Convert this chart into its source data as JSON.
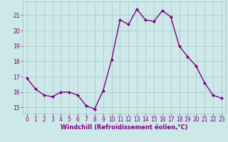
{
  "x": [
    0,
    1,
    2,
    3,
    4,
    5,
    6,
    7,
    8,
    9,
    10,
    11,
    12,
    13,
    14,
    15,
    16,
    17,
    18,
    19,
    20,
    21,
    22,
    23
  ],
  "y": [
    16.9,
    16.2,
    15.8,
    15.7,
    16.0,
    16.0,
    15.8,
    15.1,
    14.9,
    16.1,
    18.1,
    20.7,
    20.4,
    21.4,
    20.7,
    20.6,
    21.3,
    20.9,
    19.0,
    18.3,
    17.7,
    16.6,
    15.8,
    15.6
  ],
  "line_color": "#800080",
  "marker": "D",
  "marker_size": 2,
  "bg_color": "#cce8e8",
  "grid_color": "#a8c8c8",
  "xlabel": "Windchill (Refroidissement éolien,°C)",
  "xlabel_color": "#800080",
  "tick_color": "#800080",
  "yticks": [
    15,
    16,
    17,
    18,
    19,
    20,
    21
  ],
  "xticks": [
    0,
    1,
    2,
    3,
    4,
    5,
    6,
    7,
    8,
    9,
    10,
    11,
    12,
    13,
    14,
    15,
    16,
    17,
    18,
    19,
    20,
    21,
    22,
    23
  ],
  "ylim": [
    14.6,
    21.9
  ],
  "xlim": [
    -0.5,
    23.5
  ],
  "tick_fontsize": 5.5,
  "xlabel_fontsize": 6.0,
  "linewidth": 1.0
}
